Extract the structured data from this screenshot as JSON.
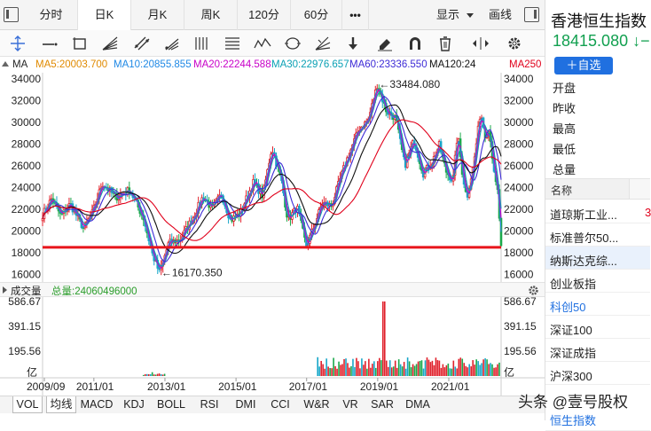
{
  "tabs": [
    "分时",
    "日K",
    "月K",
    "周K",
    "120分",
    "60分"
  ],
  "more_label": "•••",
  "display_label": "显示",
  "draw_label": "画线",
  "ma_legend": [
    {
      "label": "MA",
      "color": "#222222"
    },
    {
      "label": "MA5:20003.700",
      "color": "#e08a00"
    },
    {
      "label": "MA10:20855.855",
      "color": "#1e88e5"
    },
    {
      "label": "MA20:22244.588",
      "color": "#c800c8"
    },
    {
      "label": "MA30:22976.657",
      "color": "#0aa0b4"
    },
    {
      "label": "MA60:23336.550",
      "color": "#3d2bd6"
    },
    {
      "label": "MA120:24",
      "color": "#111111"
    },
    {
      "label": "MA250",
      "color": "#e0001b"
    }
  ],
  "chart_data": {
    "type": "candlestick",
    "title": "",
    "xlabel": "",
    "ylabel": "",
    "x_ticks": [
      "2009/09",
      "2011/01",
      "2013/01",
      "2015/01",
      "2017/01",
      "2019/01",
      "2021/01"
    ],
    "y_ticks": [
      34000,
      32000,
      30000,
      28000,
      26000,
      24000,
      22000,
      20000,
      18000,
      16000
    ],
    "ylim": [
      15800,
      34400
    ],
    "annotations": {
      "max_label": "←33484.080",
      "min_label": "←16170.350",
      "max": 33484.08,
      "min": 16170.35
    },
    "support_line": 18500,
    "grid": false,
    "price_path": [
      {
        "t": 0,
        "v": 21500
      },
      {
        "t": 0.02,
        "v": 23000
      },
      {
        "t": 0.04,
        "v": 21400
      },
      {
        "t": 0.06,
        "v": 22500
      },
      {
        "t": 0.09,
        "v": 20200
      },
      {
        "t": 0.11,
        "v": 21800
      },
      {
        "t": 0.13,
        "v": 24400
      },
      {
        "t": 0.16,
        "v": 23100
      },
      {
        "t": 0.19,
        "v": 23800
      },
      {
        "t": 0.22,
        "v": 21200
      },
      {
        "t": 0.24,
        "v": 17800
      },
      {
        "t": 0.255,
        "v": 16170
      },
      {
        "t": 0.275,
        "v": 18900
      },
      {
        "t": 0.3,
        "v": 19200
      },
      {
        "t": 0.33,
        "v": 21400
      },
      {
        "t": 0.35,
        "v": 23200
      },
      {
        "t": 0.37,
        "v": 22000
      },
      {
        "t": 0.39,
        "v": 23400
      },
      {
        "t": 0.41,
        "v": 21000
      },
      {
        "t": 0.43,
        "v": 21600
      },
      {
        "t": 0.46,
        "v": 24500
      },
      {
        "t": 0.48,
        "v": 23200
      },
      {
        "t": 0.5,
        "v": 27700
      },
      {
        "t": 0.52,
        "v": 24800
      },
      {
        "t": 0.535,
        "v": 21000
      },
      {
        "t": 0.555,
        "v": 22200
      },
      {
        "t": 0.575,
        "v": 18600
      },
      {
        "t": 0.59,
        "v": 20200
      },
      {
        "t": 0.61,
        "v": 22600
      },
      {
        "t": 0.63,
        "v": 22300
      },
      {
        "t": 0.66,
        "v": 26200
      },
      {
        "t": 0.69,
        "v": 29400
      },
      {
        "t": 0.71,
        "v": 30200
      },
      {
        "t": 0.73,
        "v": 33484
      },
      {
        "t": 0.75,
        "v": 31000
      },
      {
        "t": 0.77,
        "v": 30400
      },
      {
        "t": 0.79,
        "v": 26000
      },
      {
        "t": 0.81,
        "v": 28400
      },
      {
        "t": 0.83,
        "v": 25300
      },
      {
        "t": 0.85,
        "v": 26400
      },
      {
        "t": 0.865,
        "v": 27900
      },
      {
        "t": 0.88,
        "v": 25500
      },
      {
        "t": 0.895,
        "v": 24600
      },
      {
        "t": 0.905,
        "v": 29000
      },
      {
        "t": 0.915,
        "v": 25500
      },
      {
        "t": 0.925,
        "v": 23000
      },
      {
        "t": 0.94,
        "v": 26100
      },
      {
        "t": 0.955,
        "v": 31000
      },
      {
        "t": 0.965,
        "v": 28900
      },
      {
        "t": 0.975,
        "v": 29300
      },
      {
        "t": 0.985,
        "v": 25000
      },
      {
        "t": 0.993,
        "v": 23500
      },
      {
        "t": 1.0,
        "v": 18415
      }
    ],
    "volume": {
      "label": "成交量",
      "total_label": "总量:24060496000",
      "y_ticks": [
        "586.67",
        "391.15",
        "195.56",
        "亿"
      ],
      "ylim": [
        0,
        600
      ],
      "bursts": [
        {
          "from": 0.6,
          "to": 1.0,
          "base": 120,
          "peak": 586.67,
          "peak_at": 0.745
        },
        {
          "from": 0.22,
          "to": 0.27,
          "base": 18,
          "peak": 30,
          "peak_at": 0.24
        }
      ]
    }
  },
  "sidebar": {
    "title": "香港恒生指数",
    "price": "18415.080 ↓−",
    "add_button": "＋自选",
    "fields": [
      "开盘",
      "昨收",
      "最高",
      "最低",
      "总量"
    ],
    "list_header": "名称",
    "list": [
      "道琼斯工业...",
      "标准普尔50...",
      "纳斯达克综...",
      "创业板指",
      "科创50",
      "深证100",
      "深证成指",
      "沪深300"
    ],
    "list_partial": "3",
    "list_cut": "恒生指数"
  },
  "indicator_tabs": [
    "VOL",
    "均线",
    "MACD",
    "KDJ",
    "BOLL",
    "RSI",
    "DMI",
    "CCI",
    "W&R",
    "VR",
    "SAR",
    "DMA"
  ],
  "watermark": "头条 @壹号股权"
}
